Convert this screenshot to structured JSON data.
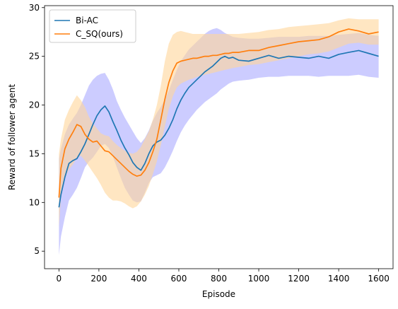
{
  "chart_data": {
    "type": "line",
    "xlabel": "Episode",
    "ylabel": "Reward of follower agent",
    "xlim": [
      -72,
      1672
    ],
    "ylim": [
      3.2,
      30.2
    ],
    "xticks": [
      0,
      200,
      400,
      600,
      800,
      1000,
      1200,
      1400,
      1600
    ],
    "yticks": [
      5,
      10,
      15,
      20,
      25,
      30
    ],
    "grid": false,
    "legend_position": "top-left",
    "series": [
      {
        "name": "Bi-AC",
        "color": "#1f77b4",
        "band_color": "#aaaaff",
        "x": [
          0,
          10,
          30,
          50,
          70,
          90,
          110,
          130,
          150,
          170,
          190,
          210,
          230,
          250,
          270,
          290,
          310,
          330,
          350,
          370,
          390,
          410,
          430,
          450,
          470,
          490,
          510,
          530,
          550,
          570,
          590,
          610,
          630,
          650,
          670,
          690,
          710,
          730,
          750,
          770,
          790,
          810,
          830,
          850,
          870,
          900,
          950,
          1000,
          1050,
          1100,
          1150,
          1200,
          1250,
          1300,
          1350,
          1400,
          1450,
          1500,
          1550,
          1600
        ],
        "mean": [
          9.5,
          10.8,
          12.6,
          14.0,
          14.3,
          14.5,
          15.2,
          16.0,
          17.0,
          18.0,
          18.9,
          19.5,
          19.9,
          19.3,
          18.3,
          17.4,
          16.4,
          15.6,
          14.9,
          14.1,
          13.6,
          13.3,
          14.0,
          15.0,
          15.8,
          16.2,
          16.4,
          16.9,
          17.6,
          18.5,
          19.6,
          20.5,
          21.2,
          21.8,
          22.2,
          22.6,
          23.0,
          23.4,
          23.7,
          24.0,
          24.4,
          24.8,
          25.0,
          24.8,
          24.9,
          24.6,
          24.5,
          24.8,
          25.1,
          24.8,
          25.0,
          24.9,
          24.8,
          25.0,
          24.8,
          25.2,
          25.4,
          25.6,
          25.3,
          25.0
        ],
        "upper": [
          14.5,
          15.5,
          17.0,
          18.0,
          18.6,
          19.2,
          20.0,
          21.0,
          22.0,
          22.6,
          23.0,
          23.2,
          23.3,
          22.6,
          21.6,
          20.4,
          19.5,
          18.7,
          18.0,
          17.3,
          16.6,
          16.1,
          16.6,
          17.4,
          18.4,
          19.2,
          19.8,
          20.6,
          21.5,
          22.6,
          23.6,
          24.5,
          25.1,
          25.7,
          26.1,
          26.5,
          26.9,
          27.3,
          27.6,
          27.8,
          27.9,
          27.7,
          27.4,
          27.2,
          27.0,
          26.9,
          26.8,
          26.8,
          26.9,
          27.0,
          27.0,
          27.0,
          27.1,
          27.1,
          27.1,
          27.2,
          27.3,
          27.4,
          27.2,
          27.1
        ],
        "lower": [
          4.6,
          6.5,
          8.5,
          10.2,
          10.8,
          11.5,
          12.5,
          13.6,
          14.2,
          14.6,
          15.2,
          15.8,
          16.0,
          15.6,
          14.7,
          13.6,
          12.5,
          11.5,
          10.8,
          10.2,
          10.0,
          10.1,
          11.0,
          12.0,
          12.6,
          12.8,
          13.0,
          13.6,
          14.4,
          15.3,
          16.3,
          17.2,
          17.9,
          18.5,
          19.0,
          19.5,
          19.9,
          20.3,
          20.6,
          20.9,
          21.2,
          21.6,
          21.9,
          22.2,
          22.4,
          22.5,
          22.6,
          22.8,
          22.9,
          22.9,
          23.0,
          23.0,
          23.0,
          22.9,
          23.0,
          23.0,
          23.0,
          23.1,
          22.9,
          22.8
        ]
      },
      {
        "name": "C_SQ(ours)",
        "color": "#ff7f0e",
        "band_color": "#ffd699",
        "x": [
          0,
          10,
          30,
          50,
          70,
          90,
          110,
          130,
          150,
          170,
          190,
          210,
          230,
          250,
          270,
          290,
          310,
          330,
          350,
          370,
          390,
          410,
          430,
          450,
          470,
          490,
          510,
          530,
          550,
          570,
          590,
          610,
          630,
          650,
          670,
          690,
          710,
          730,
          750,
          770,
          790,
          810,
          830,
          850,
          870,
          900,
          950,
          1000,
          1050,
          1100,
          1150,
          1200,
          1250,
          1300,
          1350,
          1400,
          1450,
          1500,
          1550,
          1600
        ],
        "mean": [
          10.5,
          13.5,
          15.5,
          16.5,
          17.2,
          18.0,
          17.8,
          17.0,
          16.5,
          16.2,
          16.3,
          15.8,
          15.3,
          15.2,
          14.8,
          14.4,
          14.0,
          13.6,
          13.2,
          12.9,
          12.7,
          12.8,
          13.3,
          14.1,
          15.2,
          16.5,
          18.5,
          20.6,
          22.3,
          23.5,
          24.3,
          24.5,
          24.6,
          24.7,
          24.8,
          24.8,
          24.9,
          25.0,
          25.0,
          25.1,
          25.1,
          25.2,
          25.3,
          25.3,
          25.4,
          25.4,
          25.6,
          25.6,
          25.9,
          26.1,
          26.3,
          26.5,
          26.6,
          26.7,
          27.0,
          27.5,
          27.8,
          27.6,
          27.3,
          27.5
        ],
        "upper": [
          15.0,
          16.5,
          18.5,
          19.5,
          20.3,
          21.0,
          20.5,
          19.8,
          18.8,
          18.1,
          17.6,
          17.1,
          16.9,
          16.8,
          16.3,
          15.9,
          15.6,
          15.3,
          15.1,
          15.0,
          15.2,
          15.7,
          16.5,
          17.3,
          18.5,
          20.0,
          22.0,
          24.5,
          26.3,
          27.2,
          27.5,
          27.6,
          27.5,
          27.4,
          27.3,
          27.3,
          27.3,
          27.3,
          27.3,
          27.3,
          27.3,
          27.3,
          27.3,
          27.3,
          27.3,
          27.3,
          27.4,
          27.5,
          27.7,
          27.8,
          28.0,
          28.1,
          28.2,
          28.3,
          28.4,
          28.7,
          28.9,
          28.8,
          28.8,
          28.8
        ],
        "lower": [
          7.5,
          10.5,
          12.5,
          13.4,
          13.9,
          14.6,
          14.8,
          14.3,
          13.7,
          13.1,
          12.5,
          11.8,
          11.0,
          10.5,
          10.2,
          10.2,
          10.1,
          9.9,
          9.6,
          9.4,
          9.6,
          10.1,
          10.8,
          11.7,
          12.9,
          14.2,
          15.9,
          17.8,
          19.6,
          20.9,
          21.8,
          22.2,
          22.4,
          22.6,
          22.7,
          22.9,
          23.0,
          23.1,
          23.2,
          23.3,
          23.4,
          23.5,
          23.6,
          23.7,
          23.8,
          23.9,
          24.1,
          24.2,
          24.4,
          24.6,
          24.8,
          25.0,
          25.2,
          25.3,
          25.5,
          25.9,
          26.3,
          26.4,
          26.2,
          26.2
        ]
      }
    ]
  }
}
